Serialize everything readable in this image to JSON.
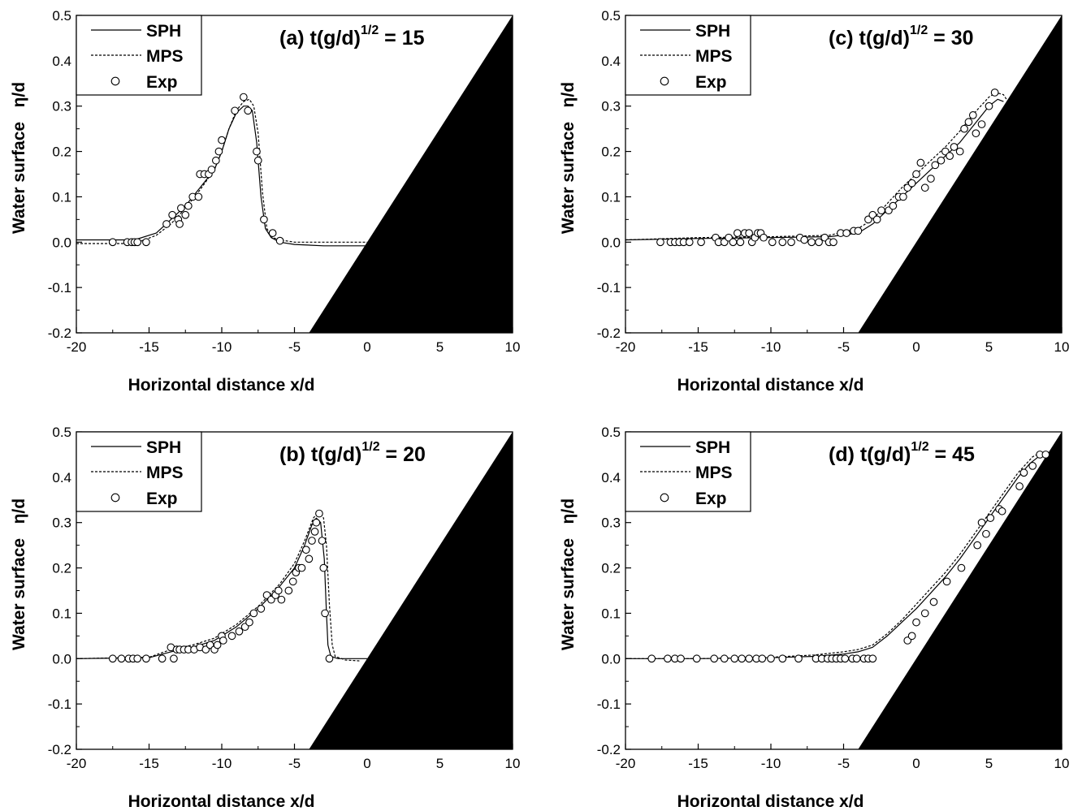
{
  "chart_data": [
    {
      "type": "line",
      "title": "(a) t(g/d)^{1/2} = 15",
      "title_parts": {
        "pre": "(a) t(g/d)",
        "sup": "1/2",
        "post": " = 15"
      },
      "xlabel": "Horizontal distance x/d",
      "ylabel": "Water surface   η/d",
      "xlim": [
        -20,
        10
      ],
      "ylim": [
        -0.2,
        0.5
      ],
      "xticks": [
        "-20",
        "-15",
        "-10",
        "-5",
        "0",
        "5",
        "10"
      ],
      "yticks": [
        "-0.2",
        "-0.1",
        "0.0",
        "0.1",
        "0.2",
        "0.3",
        "0.4",
        "0.5"
      ],
      "legend": [
        "SPH",
        "MPS",
        "Exp"
      ],
      "beach": {
        "toe_x": -4,
        "slope": 0.05,
        "color": "#000000"
      },
      "series": [
        {
          "name": "SPH",
          "style": "solid",
          "x": [
            -20,
            -16,
            -14.5,
            -13.5,
            -12.5,
            -11.5,
            -10.5,
            -10,
            -9.5,
            -9,
            -8.5,
            -8.2,
            -7.9,
            -7.6,
            -7.3,
            -7,
            -6.6,
            -6,
            -5,
            -3,
            0
          ],
          "y": [
            0.005,
            0.005,
            0.02,
            0.05,
            0.08,
            0.12,
            0.16,
            0.2,
            0.25,
            0.285,
            0.3,
            0.3,
            0.29,
            0.22,
            0.1,
            0.03,
            0.01,
            0.0,
            -0.005,
            -0.008,
            -0.008
          ]
        },
        {
          "name": "MPS",
          "style": "dashed",
          "x": [
            -20,
            -16,
            -14.5,
            -13.5,
            -12.5,
            -11.5,
            -10.5,
            -10,
            -9.5,
            -9,
            -8.5,
            -8.1,
            -7.8,
            -7.5,
            -7.2,
            -6.9,
            -6.5,
            -6,
            -5,
            -3,
            0
          ],
          "y": [
            -0.003,
            -0.003,
            0.015,
            0.04,
            0.075,
            0.115,
            0.16,
            0.2,
            0.25,
            0.29,
            0.31,
            0.315,
            0.3,
            0.24,
            0.11,
            0.03,
            0.01,
            0.005,
            0.0,
            0.0,
            0.0
          ]
        },
        {
          "name": "Exp",
          "style": "markers",
          "x": [
            -17.5,
            -16.5,
            -16.2,
            -16,
            -15.8,
            -15.2,
            -13.8,
            -13.4,
            -13,
            -12.9,
            -12.8,
            -12.5,
            -12.3,
            -12,
            -11.6,
            -11.5,
            -11.2,
            -10.9,
            -10.7,
            -10.4,
            -10.2,
            -10,
            -9.1,
            -8.5,
            -8.2,
            -7.6,
            -7.5,
            -7.1,
            -6.5,
            -6
          ],
          "y": [
            0.0,
            0.0,
            0.0,
            0.0,
            0.0,
            0.0,
            0.04,
            0.06,
            0.05,
            0.04,
            0.075,
            0.06,
            0.08,
            0.1,
            0.1,
            0.15,
            0.15,
            0.15,
            0.16,
            0.18,
            0.2,
            0.225,
            0.29,
            0.32,
            0.29,
            0.2,
            0.18,
            0.05,
            0.02,
            0.003
          ]
        }
      ]
    },
    {
      "type": "line",
      "title": "(c) t(g/d)^{1/2} = 30",
      "title_parts": {
        "pre": "(c) t(g/d)",
        "sup": "1/2",
        "post": " = 30"
      },
      "xlabel": "Horizontal distance x/d",
      "ylabel": "Water surface   η/d",
      "xlim": [
        -20,
        10
      ],
      "ylim": [
        -0.2,
        0.5
      ],
      "xticks": [
        "-20",
        "-15",
        "-10",
        "-5",
        "0",
        "5",
        "10"
      ],
      "yticks": [
        "-0.2",
        "-0.1",
        "0.0",
        "0.1",
        "0.2",
        "0.3",
        "0.4",
        "0.5"
      ],
      "legend": [
        "SPH",
        "MPS",
        "Exp"
      ],
      "beach": {
        "toe_x": -4,
        "slope": 0.05,
        "color": "#000000"
      },
      "series": [
        {
          "name": "SPH",
          "style": "solid",
          "x": [
            -20,
            -15,
            -10,
            -6,
            -4,
            -3,
            -2,
            -1,
            0,
            1,
            2,
            3,
            4,
            5,
            5.6,
            6
          ],
          "y": [
            0.005,
            0.008,
            0.01,
            0.012,
            0.02,
            0.04,
            0.07,
            0.1,
            0.13,
            0.16,
            0.19,
            0.22,
            0.26,
            0.3,
            0.315,
            0.31
          ]
        },
        {
          "name": "MPS",
          "style": "dashed",
          "x": [
            -20,
            -15,
            -10,
            -6,
            -4,
            -3,
            -2,
            -1,
            0,
            1,
            2,
            3,
            4,
            5,
            5.5,
            6,
            6.3
          ],
          "y": [
            0.005,
            0.01,
            0.012,
            0.015,
            0.03,
            0.05,
            0.085,
            0.12,
            0.15,
            0.18,
            0.21,
            0.245,
            0.285,
            0.32,
            0.33,
            0.325,
            0.31
          ]
        },
        {
          "name": "Exp",
          "style": "markers",
          "x": [
            -17.6,
            -16.9,
            -16.6,
            -16.3,
            -16,
            -15.6,
            -14.8,
            -13.8,
            -13.6,
            -13.2,
            -12.9,
            -12.6,
            -12.3,
            -12.1,
            -11.8,
            -11.5,
            -11.3,
            -11.1,
            -10.9,
            -10.7,
            -10.5,
            -9.9,
            -9.2,
            -8.6,
            -8,
            -7.7,
            -7.2,
            -6.7,
            -6.3,
            -6,
            -5.7,
            -5.2,
            -4.8,
            -4.3,
            -4,
            -3.3,
            -3,
            -2.7,
            -2.4,
            -1.9,
            -1.6,
            -1.2,
            -0.9,
            -0.6,
            -0.3,
            0,
            0.3,
            0.6,
            1,
            1.3,
            1.7,
            2,
            2.3,
            2.6,
            3,
            3.3,
            3.6,
            3.9,
            4.1,
            4.5,
            5,
            5.4
          ],
          "y": [
            0.0,
            0.0,
            0.0,
            0.0,
            0.0,
            0.0,
            0.0,
            0.01,
            0.0,
            0.0,
            0.01,
            0.0,
            0.02,
            0.0,
            0.02,
            0.02,
            0.0,
            0.01,
            0.02,
            0.02,
            0.01,
            0.0,
            0.0,
            0.0,
            0.01,
            0.005,
            0.0,
            0.0,
            0.01,
            0.0,
            0.0,
            0.02,
            0.02,
            0.025,
            0.025,
            0.05,
            0.06,
            0.05,
            0.07,
            0.07,
            0.08,
            0.1,
            0.1,
            0.12,
            0.13,
            0.15,
            0.175,
            0.12,
            0.14,
            0.17,
            0.18,
            0.2,
            0.19,
            0.21,
            0.2,
            0.25,
            0.265,
            0.28,
            0.24,
            0.26,
            0.3,
            0.33
          ]
        }
      ]
    },
    {
      "type": "line",
      "title": "(b) t(g/d)^{1/2} = 20",
      "title_parts": {
        "pre": "(b) t(g/d)",
        "sup": "1/2",
        "post": " = 20"
      },
      "xlabel": "Horizontal distance x/d",
      "ylabel": "Water surface   η/d",
      "xlim": [
        -20,
        10
      ],
      "ylim": [
        -0.2,
        0.5
      ],
      "xticks": [
        "-20",
        "-15",
        "-10",
        "-5",
        "0",
        "5",
        "10"
      ],
      "yticks": [
        "-0.2",
        "-0.1",
        "0.0",
        "0.1",
        "0.2",
        "0.3",
        "0.4",
        "0.5"
      ],
      "legend": [
        "SPH",
        "MPS",
        "Exp"
      ],
      "beach": {
        "toe_x": -4,
        "slope": 0.05,
        "color": "#000000"
      },
      "series": [
        {
          "name": "SPH",
          "style": "solid",
          "x": [
            -20,
            -15,
            -13.5,
            -12,
            -10.5,
            -9,
            -7.5,
            -6,
            -5,
            -4.3,
            -3.8,
            -3.5,
            -3.2,
            -2.95,
            -2.8,
            -2.7,
            -2.5,
            -2,
            -1,
            0
          ],
          "y": [
            0.0,
            0.002,
            0.015,
            0.025,
            0.04,
            0.07,
            0.11,
            0.16,
            0.2,
            0.25,
            0.295,
            0.31,
            0.3,
            0.22,
            0.1,
            0.03,
            0.005,
            0.0,
            0.0,
            0.0
          ]
        },
        {
          "name": "MPS",
          "style": "dashed",
          "x": [
            -20,
            -15,
            -13.5,
            -12,
            -10.5,
            -9,
            -7.5,
            -6,
            -5,
            -4.3,
            -3.7,
            -3.3,
            -3,
            -2.8,
            -2.6,
            -2.4,
            -2.2,
            -1.5,
            -0.5
          ],
          "y": [
            0.0,
            0.003,
            0.02,
            0.03,
            0.045,
            0.075,
            0.115,
            0.165,
            0.21,
            0.26,
            0.31,
            0.325,
            0.31,
            0.25,
            0.12,
            0.03,
            0.005,
            -0.003,
            -0.005
          ]
        },
        {
          "name": "Exp",
          "style": "markers",
          "x": [
            -17.5,
            -16.9,
            -16.4,
            -16.1,
            -15.8,
            -15.2,
            -14.1,
            -13.5,
            -13.3,
            -13.1,
            -12.9,
            -12.6,
            -12.3,
            -11.9,
            -11.5,
            -11.1,
            -10.8,
            -10.5,
            -10.3,
            -10,
            -9.9,
            -9.3,
            -8.8,
            -8.4,
            -8.1,
            -7.8,
            -7.3,
            -6.9,
            -6.6,
            -6.3,
            -6.1,
            -5.9,
            -5.4,
            -5.1,
            -4.9,
            -4.7,
            -4.5,
            -4.2,
            -4,
            -3.8,
            -3.6,
            -3.5,
            -3.3,
            -3.1,
            -3,
            -2.9,
            -2.6
          ],
          "y": [
            0.0,
            0.0,
            0.0,
            0.0,
            0.0,
            0.0,
            0.0,
            0.025,
            0.0,
            0.02,
            0.02,
            0.02,
            0.02,
            0.02,
            0.025,
            0.02,
            0.03,
            0.02,
            0.03,
            0.05,
            0.04,
            0.05,
            0.06,
            0.07,
            0.08,
            0.1,
            0.11,
            0.14,
            0.13,
            0.14,
            0.15,
            0.13,
            0.15,
            0.17,
            0.19,
            0.2,
            0.2,
            0.24,
            0.22,
            0.26,
            0.28,
            0.3,
            0.32,
            0.26,
            0.2,
            0.1,
            0.0
          ]
        }
      ]
    },
    {
      "type": "line",
      "title": "(d) t(g/d)^{1/2} = 45",
      "title_parts": {
        "pre": "(d) t(g/d)",
        "sup": "1/2",
        "post": " = 45"
      },
      "xlabel": "Horizontal distance x/d",
      "ylabel": "Water surface   η/d",
      "xlim": [
        -20,
        10
      ],
      "ylim": [
        -0.2,
        0.5
      ],
      "xticks": [
        "-20",
        "-15",
        "-10",
        "-5",
        "0",
        "5",
        "10"
      ],
      "yticks": [
        "-0.2",
        "-0.1",
        "0.0",
        "0.1",
        "0.2",
        "0.3",
        "0.4",
        "0.5"
      ],
      "legend": [
        "SPH",
        "MPS",
        "Exp"
      ],
      "beach": {
        "toe_x": -4,
        "slope": 0.05,
        "color": "#000000"
      },
      "series": [
        {
          "name": "SPH",
          "style": "solid",
          "x": [
            -20,
            -15,
            -10,
            -7,
            -5,
            -4,
            -3,
            -2,
            -1,
            0,
            1,
            2,
            3,
            4,
            5,
            6,
            7,
            7.8,
            8.4,
            8.8
          ],
          "y": [
            0.0,
            0.0,
            0.002,
            0.005,
            0.01,
            0.015,
            0.025,
            0.05,
            0.08,
            0.11,
            0.145,
            0.18,
            0.22,
            0.265,
            0.31,
            0.355,
            0.4,
            0.43,
            0.445,
            0.45
          ]
        },
        {
          "name": "MPS",
          "style": "dashed",
          "x": [
            -20,
            -15,
            -10,
            -7,
            -5,
            -4,
            -3,
            -2,
            -1,
            0,
            1,
            2,
            3,
            4,
            5,
            6,
            7,
            8,
            8.6,
            9.2,
            9.4
          ],
          "y": [
            0.0,
            0.0,
            0.003,
            0.008,
            0.015,
            0.02,
            0.03,
            0.055,
            0.085,
            0.12,
            0.155,
            0.19,
            0.23,
            0.275,
            0.32,
            0.365,
            0.41,
            0.445,
            0.455,
            0.45,
            0.44
          ]
        },
        {
          "name": "Exp",
          "style": "markers",
          "x": [
            -18.2,
            -17.1,
            -16.6,
            -16.2,
            -15.1,
            -13.9,
            -13.2,
            -12.5,
            -12,
            -11.5,
            -11,
            -10.6,
            -10,
            -9.2,
            -8.1,
            -6.9,
            -6.5,
            -6.1,
            -5.8,
            -5.5,
            -5.2,
            -4.9,
            -4.4,
            -4.1,
            -3.6,
            -3.3,
            -3,
            -0.6,
            -0.3,
            0,
            0.6,
            1.2,
            2.1,
            3.1,
            4.2,
            4.5,
            4.8,
            5.1,
            5.7,
            5.9,
            7.1,
            7.4,
            8,
            8.5,
            8.9
          ],
          "y": [
            0.0,
            0.0,
            0.0,
            0.0,
            0.0,
            0.0,
            0.0,
            0.0,
            0.0,
            0.0,
            0.0,
            0.0,
            0.0,
            0.0,
            0.0,
            0.0,
            0.0,
            0.0,
            0.0,
            0.0,
            0.0,
            0.0,
            0.0,
            0.0,
            0.0,
            0.0,
            0.0,
            0.04,
            0.05,
            0.08,
            0.1,
            0.125,
            0.17,
            0.2,
            0.25,
            0.3,
            0.275,
            0.31,
            0.33,
            0.325,
            0.38,
            0.41,
            0.425,
            0.45,
            0.45
          ]
        }
      ]
    }
  ]
}
